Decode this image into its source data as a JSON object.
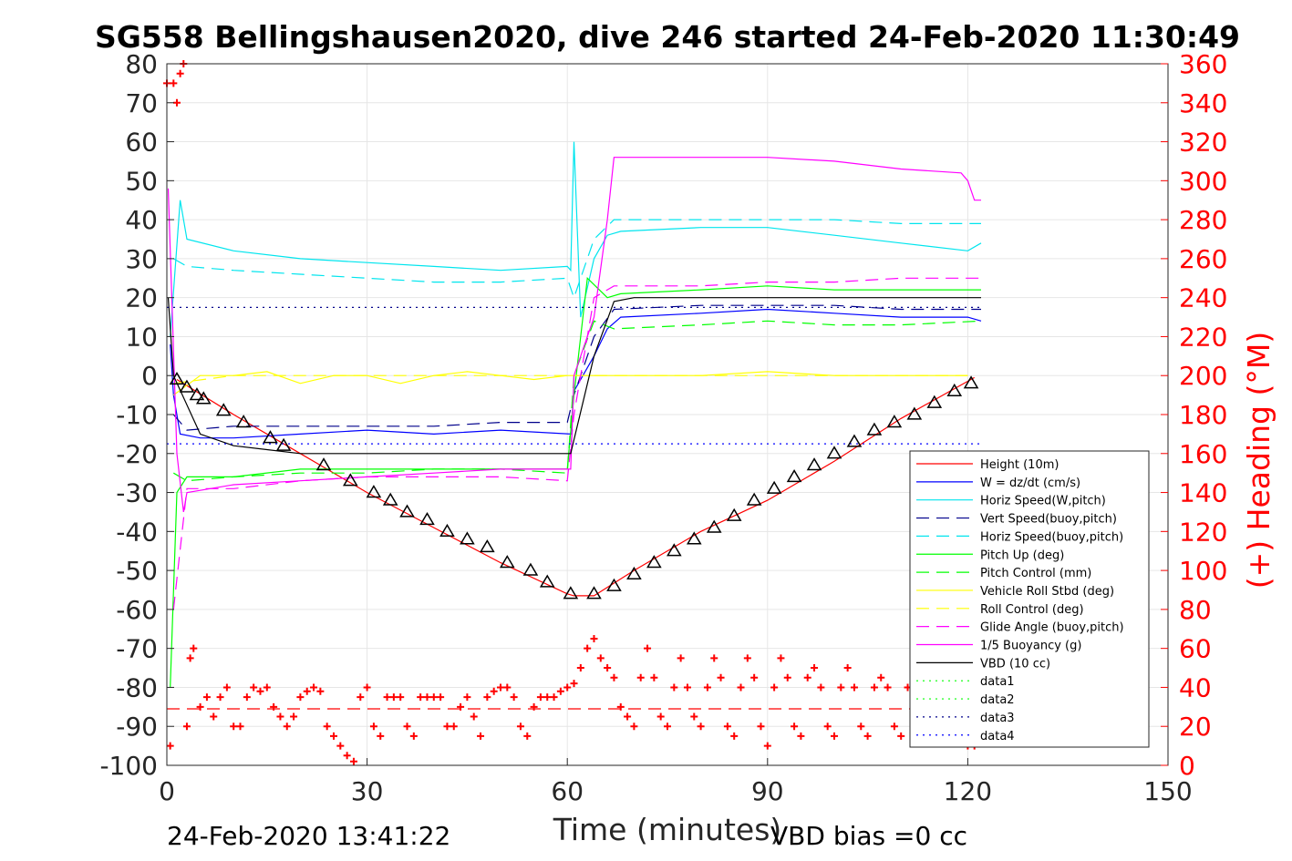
{
  "chart_data": {
    "type": "line",
    "title": "SG558 Bellingshausen2020, dive 246 started 24-Feb-2020 11:30:49",
    "xlabel": "Time (minutes)",
    "ylabel": "",
    "y2label": "(+) Heading (°M)",
    "xlim": [
      0,
      150
    ],
    "ylim": [
      -100,
      80
    ],
    "y2lim": [
      0,
      360
    ],
    "xticks": [
      0,
      30,
      60,
      90,
      120,
      150
    ],
    "yticks": [
      80,
      70,
      60,
      50,
      40,
      30,
      20,
      10,
      0,
      -10,
      -20,
      -30,
      -40,
      -50,
      -60,
      -70,
      -80,
      -90,
      -100
    ],
    "y2ticks": [
      360,
      340,
      320,
      300,
      280,
      260,
      240,
      220,
      200,
      180,
      160,
      140,
      120,
      100,
      80,
      60,
      40,
      20,
      0
    ],
    "grid": true,
    "legend_position": "lower-right",
    "footer_left": "24-Feb-2020 13:41:22",
    "footer_right": "VBD bias =0 cc",
    "series": [
      {
        "name": "Height (10m)",
        "color": "#ff0000",
        "style": "solid",
        "x": [
          1.5,
          10,
          20,
          30,
          40,
          50,
          60,
          61,
          62,
          64,
          70,
          80,
          90,
          100,
          110,
          121
        ],
        "y": [
          -1,
          -10,
          -20,
          -30,
          -39,
          -48,
          -56,
          -56.5,
          -56.5,
          -56.5,
          -50,
          -40,
          -32,
          -22,
          -11,
          -0.5
        ]
      },
      {
        "name": "W = dz/dt (cm/s)",
        "color": "#0000ff",
        "style": "solid",
        "x": [
          0.5,
          1,
          2,
          5,
          10,
          20,
          30,
          40,
          50,
          60.5,
          61,
          64,
          66,
          68,
          80,
          90,
          100,
          110,
          120,
          122
        ],
        "y": [
          8,
          -5,
          -15,
          -16,
          -16,
          -15,
          -14,
          -15,
          -14,
          -15,
          -4,
          5,
          12,
          15,
          16,
          17,
          16,
          15,
          15,
          14
        ]
      },
      {
        "name": "Horiz Speed(W,pitch)",
        "color": "#00e5ee",
        "style": "solid",
        "x": [
          0.5,
          2,
          3,
          10,
          20,
          30,
          40,
          50,
          60,
          60.5,
          61,
          62,
          64,
          66,
          68,
          80,
          90,
          100,
          110,
          120,
          122
        ],
        "y": [
          10,
          45,
          35,
          32,
          30,
          29,
          28,
          27,
          28,
          27,
          60,
          15,
          30,
          36,
          37,
          38,
          38,
          36,
          34,
          32,
          34
        ]
      },
      {
        "name": "Vert Speed(buoy,pitch)",
        "color": "#00008b",
        "style": "dashed",
        "x": [
          1,
          3,
          10,
          20,
          30,
          40,
          50,
          60,
          61,
          64,
          67,
          80,
          90,
          100,
          110,
          122
        ],
        "y": [
          -10,
          -14,
          -13,
          -13,
          -13,
          -13,
          -12,
          -12,
          -5,
          10,
          17,
          18,
          18,
          18,
          17,
          17
        ]
      },
      {
        "name": "Horiz Speed(buoy,pitch)",
        "color": "#00e5ee",
        "style": "dashed",
        "x": [
          1,
          3,
          10,
          20,
          30,
          40,
          50,
          60,
          61,
          64,
          67,
          80,
          90,
          100,
          110,
          122
        ],
        "y": [
          30,
          28,
          27,
          26,
          25,
          24,
          24,
          25,
          20,
          35,
          40,
          40,
          40,
          40,
          39,
          39
        ]
      },
      {
        "name": "Pitch Up (deg)",
        "color": "#00ff00",
        "style": "solid",
        "x": [
          0.5,
          1.5,
          3,
          10,
          20,
          30,
          40,
          50,
          60,
          61,
          63,
          66,
          68,
          80,
          90,
          100,
          110,
          120,
          122
        ],
        "y": [
          -80,
          -30,
          -26,
          -26,
          -24,
          -24,
          -24,
          -24,
          -24,
          -5,
          25,
          20,
          21,
          22,
          23,
          22,
          22,
          22,
          22
        ]
      },
      {
        "name": "Pitch Control (mm)",
        "color": "#00ff00",
        "style": "dashed",
        "x": [
          1,
          3,
          10,
          20,
          30,
          40,
          50,
          60,
          61,
          64,
          67,
          80,
          90,
          100,
          110,
          122
        ],
        "y": [
          -25,
          -27,
          -26,
          -25,
          -25,
          -24,
          -24,
          -25,
          0,
          14,
          12,
          13,
          14,
          13,
          13,
          14
        ]
      },
      {
        "name": "Vehicle Roll Stbd (deg)",
        "color": "#ffff00",
        "style": "solid",
        "x": [
          1,
          5,
          10,
          15,
          20,
          25,
          30,
          35,
          40,
          45,
          50,
          55,
          60,
          65,
          70,
          80,
          90,
          100,
          110,
          120
        ],
        "y": [
          -5,
          0,
          0,
          1,
          -2,
          0,
          0,
          -2,
          0,
          1,
          0,
          -1,
          0,
          0,
          0,
          0,
          1,
          0,
          0,
          0
        ]
      },
      {
        "name": "Roll Control (deg)",
        "color": "#ffff00",
        "style": "dashed",
        "x": [
          1,
          10,
          20,
          30,
          40,
          50,
          60,
          70,
          80,
          90,
          100,
          110,
          120
        ],
        "y": [
          -2,
          0,
          0,
          0,
          0,
          0,
          0,
          0,
          0,
          0,
          0,
          0,
          0
        ]
      },
      {
        "name": "Glide Angle (buoy,pitch)",
        "color": "#ff00ff",
        "style": "dashed",
        "x": [
          1,
          3,
          10,
          20,
          30,
          40,
          50,
          60,
          61,
          64,
          67,
          80,
          90,
          100,
          110,
          122
        ],
        "y": [
          -60,
          -29,
          -29,
          -27,
          -26,
          -26,
          -26,
          -27,
          -10,
          20,
          23,
          23,
          24,
          24,
          25,
          25
        ]
      },
      {
        "name": "1/5 Buoyancy (g)",
        "color": "#ff00ff",
        "style": "solid",
        "x": [
          0.2,
          1.5,
          2.5,
          3,
          10,
          20,
          30,
          40,
          50,
          60.5,
          61,
          64,
          66,
          67,
          80,
          90,
          100,
          110,
          119,
          120,
          121,
          122
        ],
        "y": [
          48,
          -20,
          -35,
          -30,
          -28,
          -27,
          -26,
          -25,
          -24,
          -24,
          0,
          15,
          40,
          56,
          56,
          56,
          55,
          53,
          52,
          50,
          45,
          45
        ]
      },
      {
        "name": "VBD (10 cc)",
        "color": "#000000",
        "style": "solid",
        "x": [
          0.2,
          1,
          5,
          10,
          15,
          20,
          30,
          40,
          50,
          60.5,
          64,
          67,
          70,
          80,
          90,
          100,
          110,
          122
        ],
        "y": [
          20,
          0,
          -15,
          -18,
          -19,
          -20,
          -20,
          -20,
          -20,
          -20,
          5,
          19,
          20,
          20,
          20,
          20,
          20,
          20
        ]
      },
      {
        "name": "data1",
        "color": "#00ff00",
        "style": "dotted",
        "x": [],
        "y": []
      },
      {
        "name": "data2",
        "color": "#00ff00",
        "style": "dotted",
        "x": [],
        "y": []
      },
      {
        "name": "data3",
        "color": "#00008b",
        "style": "dotted",
        "x": [
          0,
          122
        ],
        "y": [
          17.5,
          17.5
        ]
      },
      {
        "name": "data4",
        "color": "#0000ff",
        "style": "dotted",
        "x": [
          0,
          122
        ],
        "y": [
          -17.5,
          -17.5
        ]
      }
    ],
    "markers": {
      "description_free": true,
      "color": "#000000",
      "x": [
        1.5,
        3,
        4.5,
        5.5,
        8.5,
        11.5,
        15.5,
        17.5,
        23.5,
        27.5,
        31,
        33.5,
        36,
        39,
        42,
        45,
        48,
        51,
        54.5,
        57,
        60.5,
        64,
        67,
        70,
        73,
        76,
        79,
        82,
        85,
        88,
        91,
        94,
        97,
        100,
        103,
        106,
        109,
        112,
        115,
        118,
        120.5
      ],
      "y": [
        -1,
        -3,
        -5,
        -6,
        -9,
        -12,
        -16,
        -18,
        -23,
        -27,
        -30,
        -32,
        -35,
        -37,
        -40,
        -42,
        -44,
        -48,
        -50,
        -53,
        -56,
        -56,
        -54,
        -51,
        -48,
        -45,
        -42,
        -39,
        -36,
        -32,
        -29,
        -26,
        -23,
        -20,
        -17,
        -14,
        -12,
        -10,
        -7,
        -4,
        -2
      ]
    },
    "heading": {
      "axis": "right",
      "color": "#ff0000",
      "x": [
        0,
        0.5,
        1,
        1.5,
        2,
        2.5,
        3,
        3.5,
        4,
        5,
        6,
        7,
        8,
        9,
        10,
        11,
        12,
        13,
        14,
        15,
        16,
        17,
        18,
        19,
        20,
        21,
        22,
        23,
        24,
        25,
        26,
        27,
        28,
        29,
        30,
        31,
        32,
        33,
        34,
        35,
        36,
        37,
        38,
        39,
        40,
        41,
        42,
        43,
        44,
        45,
        46,
        47,
        48,
        49,
        50,
        51,
        52,
        53,
        54,
        55,
        56,
        57,
        58,
        59,
        60,
        61,
        62,
        63,
        64,
        65,
        66,
        67,
        68,
        69,
        70,
        71,
        72,
        73,
        74,
        75,
        76,
        77,
        78,
        79,
        80,
        81,
        82,
        83,
        84,
        85,
        86,
        87,
        88,
        89,
        90,
        91,
        92,
        93,
        94,
        95,
        96,
        97,
        98,
        99,
        100,
        101,
        102,
        103,
        104,
        105,
        106,
        107,
        108,
        109,
        110,
        111,
        112,
        113,
        114,
        115,
        116,
        117,
        118,
        119,
        120,
        121,
        122
      ],
      "y": [
        350,
        10,
        350,
        340,
        355,
        360,
        20,
        55,
        60,
        30,
        35,
        25,
        35,
        40,
        20,
        20,
        35,
        40,
        38,
        40,
        30,
        25,
        20,
        25,
        35,
        38,
        40,
        38,
        20,
        15,
        10,
        5,
        2,
        35,
        40,
        20,
        15,
        35,
        35,
        35,
        20,
        15,
        35,
        35,
        35,
        35,
        20,
        20,
        30,
        35,
        25,
        15,
        35,
        38,
        40,
        40,
        35,
        20,
        15,
        30,
        35,
        35,
        35,
        38,
        40,
        42,
        50,
        60,
        65,
        55,
        50,
        45,
        30,
        25,
        20,
        45,
        60,
        45,
        25,
        20,
        40,
        55,
        40,
        25,
        20,
        40,
        55,
        45,
        20,
        15,
        40,
        55,
        45,
        20,
        10,
        40,
        55,
        45,
        20,
        15,
        45,
        50,
        40,
        20,
        15,
        40,
        50,
        40,
        20,
        15,
        40,
        45,
        40,
        20,
        15,
        40,
        45,
        40,
        25,
        20,
        40,
        40,
        30,
        15,
        10,
        10,
        15
      ],
      "mean": 29
    }
  }
}
